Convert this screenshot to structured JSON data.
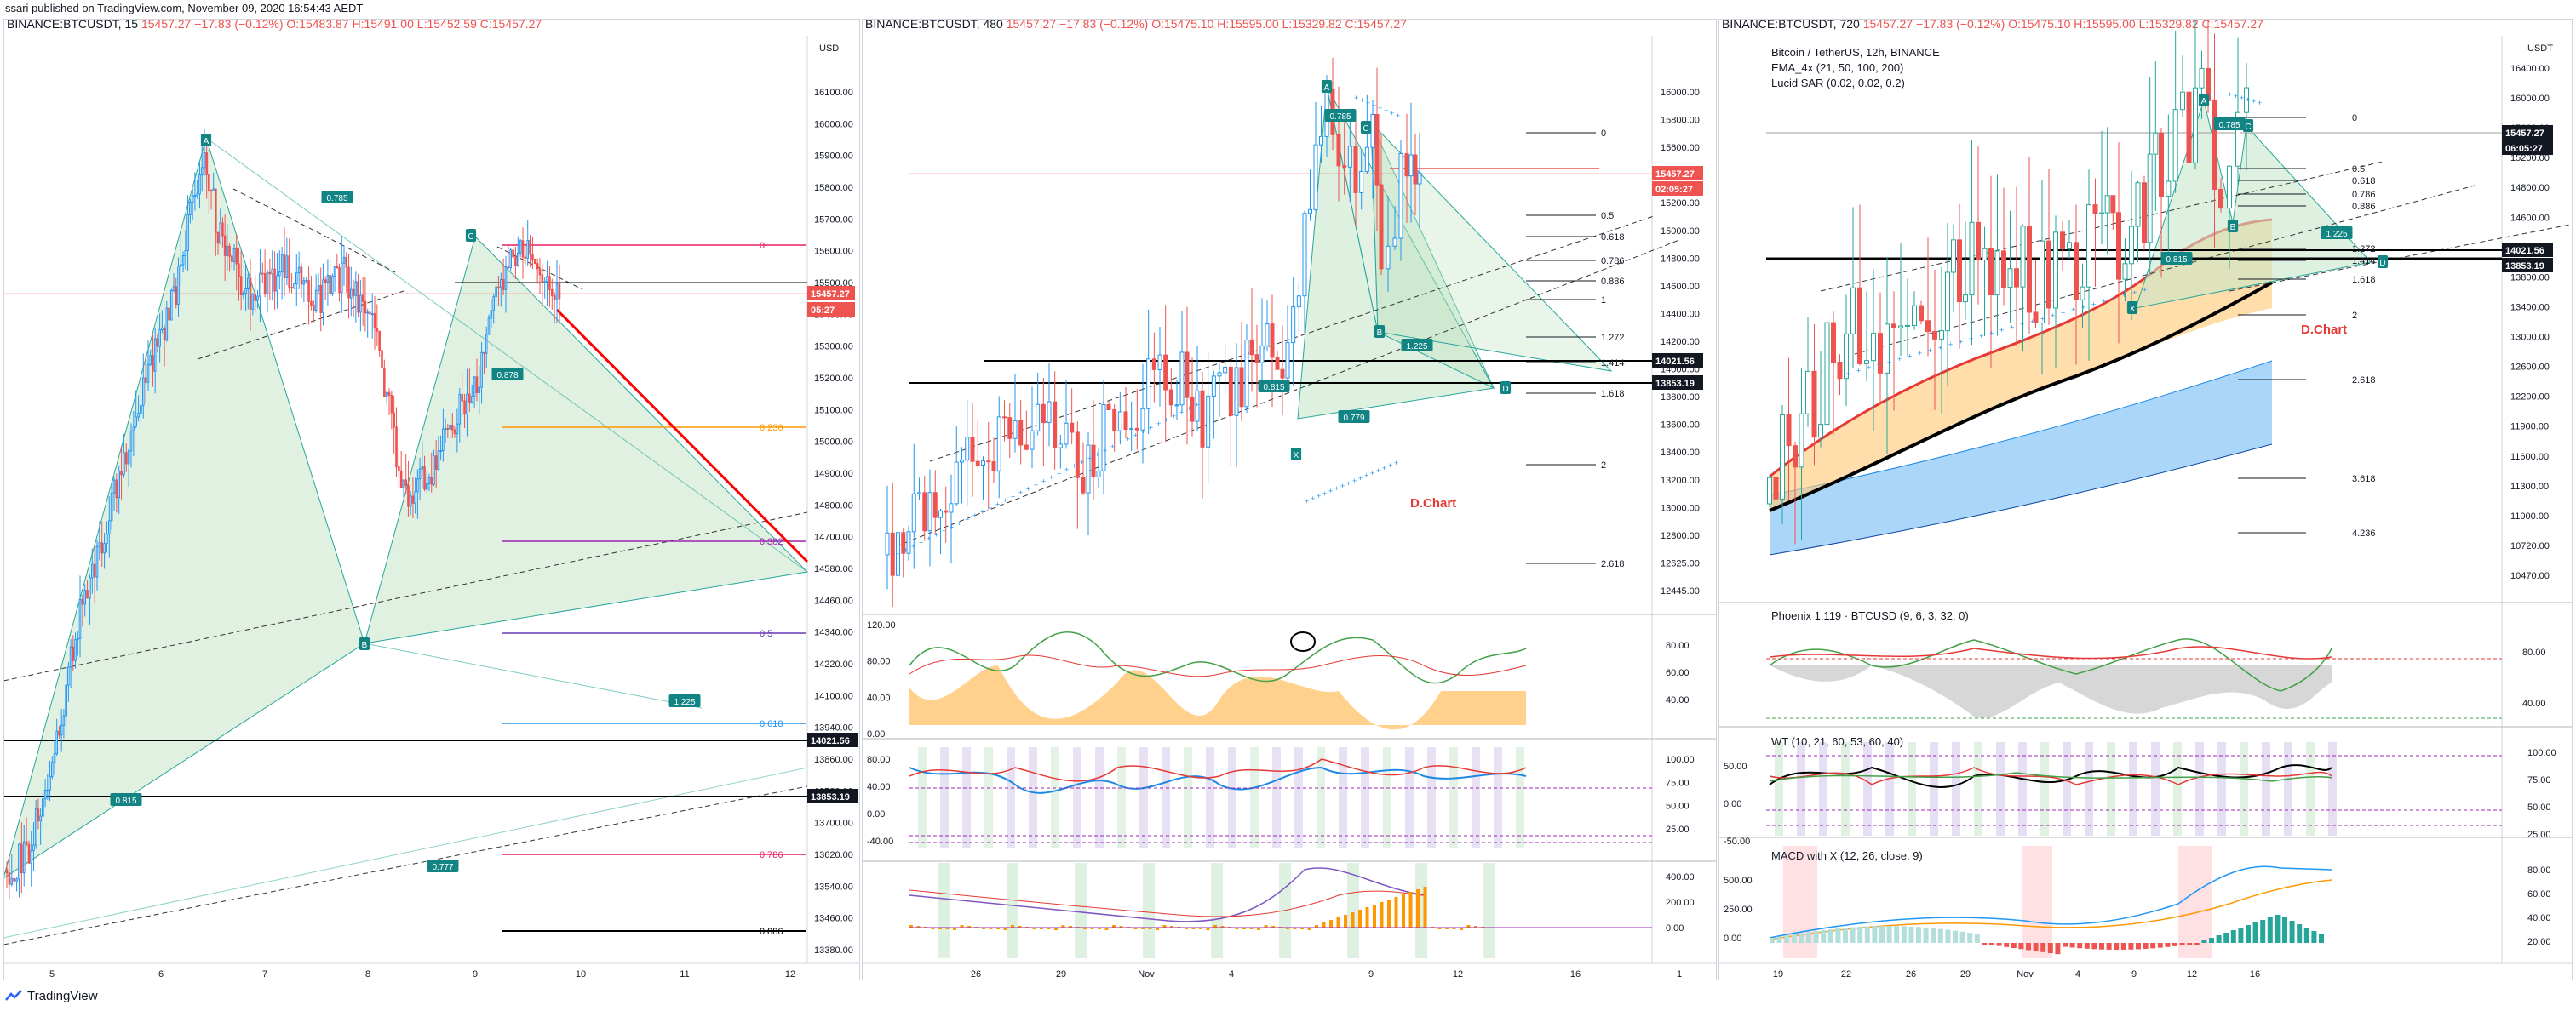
{
  "header": {
    "published": "ssari published on TradingView.com, November 09, 2020 16:54:43 AEDT"
  },
  "footer": {
    "brand": "TradingView"
  },
  "colors": {
    "up": "#2196f3",
    "down": "#ef5350",
    "pattern_fill": "#c8e6c9",
    "pattern_stroke": "#26a69a",
    "label_bg": "#138484",
    "price_tag": "#ef5350",
    "dark_tag": "#131722"
  },
  "panels": [
    {
      "id": "left",
      "title": {
        "symbol": "BINANCE:BTCUSDT, 15",
        "last": "15457.27",
        "change": "−17.83 (−0.12%)",
        "o": "O:15483.87",
        "h": "H:15491.00",
        "l": "L:15452.59",
        "c": "C:15457.27"
      },
      "axis_unit": "USD",
      "y_ticks": [
        "16100.00",
        "16000.00",
        "15900.00",
        "15800.00",
        "15700.00",
        "15600.00",
        "15500.00",
        "15400.00",
        "15300.00",
        "15200.00",
        "15100.00",
        "15000.00",
        "14900.00",
        "14800.00",
        "14700.00",
        "14580.00",
        "14460.00",
        "14340.00",
        "14220.00",
        "14100.00",
        "13940.00",
        "13860.00",
        "13780.00",
        "13700.00",
        "13620.00",
        "13540.00",
        "13460.00",
        "13380.00"
      ],
      "x_ticks": [
        "5",
        "6",
        "7",
        "8",
        "9",
        "10",
        "11",
        "12"
      ],
      "price_tags": [
        {
          "text": "15457.27",
          "kind": "red"
        },
        {
          "text": "05:27",
          "kind": "red"
        },
        {
          "text": "14021.56",
          "kind": "dark"
        },
        {
          "text": "13853.19",
          "kind": "dark"
        }
      ],
      "fib_levels": [
        {
          "label": "0",
          "color": "#e91e63"
        },
        {
          "label": "0.236",
          "color": "#ff9800"
        },
        {
          "label": "0.382",
          "color": "#9c27b0"
        },
        {
          "label": "0.5",
          "color": "#673ab7"
        },
        {
          "label": "0.618",
          "color": "#2196f3"
        },
        {
          "label": "0.786",
          "color": "#e91e63"
        },
        {
          "label": "0.886",
          "color": "#000000"
        }
      ],
      "pattern_points": [
        "A",
        "B",
        "C"
      ],
      "pattern_ratios": [
        "0.785",
        "0.878",
        "1.225",
        "0.815",
        "0.777"
      ]
    },
    {
      "id": "mid",
      "title": {
        "symbol": "BINANCE:BTCUSDT, 480",
        "last": "15457.27",
        "change": "−17.83 (−0.12%)",
        "o": "O:15475.10",
        "h": "H:15595.00",
        "l": "L:15329.82",
        "c": "C:15457.27"
      },
      "y_ticks": [
        "16000.00",
        "15800.00",
        "15600.00",
        "15400.00",
        "15200.00",
        "15000.00",
        "14800.00",
        "14600.00",
        "14400.00",
        "14200.00",
        "14000.00",
        "13800.00",
        "13600.00",
        "13400.00",
        "13200.00",
        "13000.00",
        "12800.00",
        "12625.00",
        "12445.00"
      ],
      "x_ticks": [
        "26",
        "29",
        "Nov",
        "4",
        "9",
        "12",
        "16",
        "1"
      ],
      "price_tags": [
        {
          "text": "15457.27",
          "kind": "red"
        },
        {
          "text": "02:05:27",
          "kind": "red"
        },
        {
          "text": "14021.56",
          "kind": "dark"
        },
        {
          "text": "13853.19",
          "kind": "dark"
        }
      ],
      "fib_labels": [
        "0",
        "0.5",
        "0.618",
        "0.786",
        "0.886",
        "1",
        "1.272",
        "1.414",
        "1.618",
        "2",
        "2.618"
      ],
      "pattern_points": [
        "A",
        "B",
        "C",
        "X",
        "D"
      ],
      "pattern_ratios": [
        "0.785",
        "1.225",
        "0.815",
        "0.779"
      ],
      "annotation": "D.Chart",
      "osc1_ticks_left": [
        "120.00",
        "80.00",
        "40.00",
        "0.00"
      ],
      "osc1_ticks_right": [
        "80.00",
        "60.00",
        "40.00"
      ],
      "osc2_ticks_left": [
        "80.00",
        "40.00",
        "0.00",
        "-40.00"
      ],
      "osc2_ticks_right": [
        "100.00",
        "75.00",
        "50.00",
        "25.00"
      ],
      "osc3_ticks_right": [
        "400.00",
        "200.00",
        "0.00"
      ]
    },
    {
      "id": "right",
      "title": {
        "symbol": "BINANCE:BTCUSDT, 720",
        "last": "15457.27",
        "change": "−17.83 (−0.12%)",
        "o": "O:15475.10",
        "h": "H:15595.00",
        "l": "L:15329.82",
        "c": "C:15457.27"
      },
      "legend": [
        "Bitcoin / TetherUS, 12h, BINANCE",
        "EMA_4x (21, 50, 100, 200)",
        "Lucid SAR (0.02, 0.02, 0.2)"
      ],
      "axis_unit": "USDT",
      "y_ticks": [
        "16400.00",
        "16000.00",
        "15600.00",
        "15200.00",
        "14800.00",
        "14600.00",
        "14200.00",
        "13800.00",
        "13400.00",
        "13000.00",
        "12600.00",
        "12200.00",
        "11900.00",
        "11600.00",
        "11300.00",
        "11000.00",
        "10720.00",
        "10470.00"
      ],
      "x_ticks": [
        "19",
        "22",
        "26",
        "29",
        "Nov",
        "4",
        "9",
        "12",
        "16"
      ],
      "price_tags": [
        {
          "text": "15457.27",
          "kind": "dark"
        },
        {
          "text": "06:05:27",
          "kind": "dark"
        },
        {
          "text": "14021.56",
          "kind": "dark"
        },
        {
          "text": "13853.19",
          "kind": "dark"
        }
      ],
      "fib_labels": [
        "0",
        "0.5",
        "0.618",
        "0.786",
        "0.886",
        "1.272",
        "1.414",
        "1.618",
        "2",
        "2.618",
        "3.618",
        "4.236"
      ],
      "pattern_points": [
        "A",
        "B",
        "C",
        "X",
        "D"
      ],
      "pattern_ratios": [
        "0.785",
        "1.225",
        "0.815"
      ],
      "annotation": "D.Chart",
      "ind1_title": "Phoenix 1.119 · BTCUSD (9, 6, 3, 32, 0)",
      "ind1_ticks": [
        "80.00",
        "40.00"
      ],
      "ind2_title": "WT (10, 21, 60, 53, 60, 40)",
      "ind2_ticks_left": [
        "50.00",
        "0.00",
        "-50.00"
      ],
      "ind2_ticks_right": [
        "100.00",
        "75.00",
        "50.00",
        "25.00"
      ],
      "ind3_title": "MACD with X (12, 26, close, 9)",
      "ind3_ticks_left": [
        "500.00",
        "250.00",
        "0.00"
      ],
      "ind3_ticks_right": [
        "80.00",
        "60.00",
        "40.00",
        "20.00"
      ]
    }
  ],
  "chart_data": [
    {
      "type": "candlestick",
      "title": "BINANCE:BTCUSDT, 15",
      "x_ticks": [
        "5",
        "6",
        "7",
        "8",
        "9",
        "10",
        "11",
        "12"
      ],
      "ylim": [
        13380,
        16100
      ],
      "horizontal_levels": [
        14021.56,
        13853.19
      ],
      "fibonacci": [
        {
          "ratio": 0,
          "price": 15620
        },
        {
          "ratio": 0.236,
          "price": 15000
        },
        {
          "ratio": 0.382,
          "price": 14630
        },
        {
          "ratio": 0.5,
          "price": 14340
        },
        {
          "ratio": 0.618,
          "price": 14060
        },
        {
          "ratio": 0.786,
          "price": 13690
        },
        {
          "ratio": 0.886,
          "price": 13430
        }
      ],
      "last_price": 15457.27
    },
    {
      "type": "candlestick",
      "title": "BINANCE:BTCUSDT, 480",
      "x_ticks": [
        "26",
        "29",
        "Nov",
        "4",
        "9",
        "12",
        "16",
        "1"
      ],
      "ylim": [
        12445,
        16000
      ],
      "horizontal_levels": [
        14021.56,
        13853.19
      ],
      "last_price": 15457.27
    },
    {
      "type": "candlestick",
      "title": "BINANCE:BTCUSDT, 720",
      "x_ticks": [
        "19",
        "22",
        "26",
        "29",
        "Nov",
        "4",
        "9",
        "12",
        "16"
      ],
      "ylim": [
        10470,
        16400
      ],
      "horizontal_levels": [
        14021.56,
        13853.19
      ],
      "last_price": 15457.27
    }
  ]
}
